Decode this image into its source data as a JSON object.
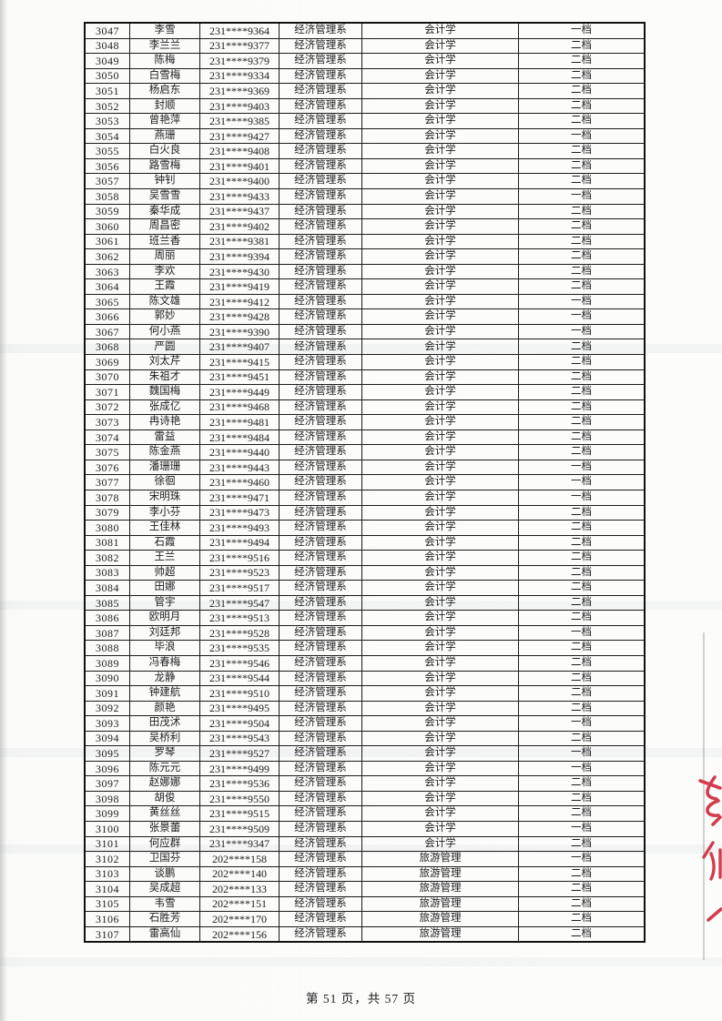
{
  "page": {
    "footer_text": "第 51 页，共 57 页",
    "colors": {
      "ink": "#1c1c1e",
      "paper": "#fbfbf9",
      "table_border": "#1a1a1a",
      "red_annotation": "#d23c4e"
    },
    "icons": {
      "red_annotation_marks": "handwritten-red-pen-strokes-clipped-at-page-edge"
    }
  },
  "table": {
    "rows": [
      [
        "3047",
        "李雪",
        "231****9364",
        "经济管理系",
        "会计学",
        "一档"
      ],
      [
        "3048",
        "李兰兰",
        "231****9377",
        "经济管理系",
        "会计学",
        "二档"
      ],
      [
        "3049",
        "陈梅",
        "231****9379",
        "经济管理系",
        "会计学",
        "二档"
      ],
      [
        "3050",
        "白雪梅",
        "231****9334",
        "经济管理系",
        "会计学",
        "二档"
      ],
      [
        "3051",
        "杨启东",
        "231****9369",
        "经济管理系",
        "会计学",
        "二档"
      ],
      [
        "3052",
        "封顺",
        "231****9403",
        "经济管理系",
        "会计学",
        "二档"
      ],
      [
        "3053",
        "曾艳萍",
        "231****9385",
        "经济管理系",
        "会计学",
        "二档"
      ],
      [
        "3054",
        "燕珊",
        "231****9427",
        "经济管理系",
        "会计学",
        "一档"
      ],
      [
        "3055",
        "白火良",
        "231****9408",
        "经济管理系",
        "会计学",
        "二档"
      ],
      [
        "3056",
        "路雪梅",
        "231****9401",
        "经济管理系",
        "会计学",
        "二档"
      ],
      [
        "3057",
        "钟钊",
        "231****9400",
        "经济管理系",
        "会计学",
        "二档"
      ],
      [
        "3058",
        "吴雪雪",
        "231****9433",
        "经济管理系",
        "会计学",
        "一档"
      ],
      [
        "3059",
        "秦华成",
        "231****9437",
        "经济管理系",
        "会计学",
        "二档"
      ],
      [
        "3060",
        "周昌密",
        "231****9402",
        "经济管理系",
        "会计学",
        "二档"
      ],
      [
        "3061",
        "班兰香",
        "231****9381",
        "经济管理系",
        "会计学",
        "二档"
      ],
      [
        "3062",
        "周丽",
        "231****9394",
        "经济管理系",
        "会计学",
        "二档"
      ],
      [
        "3063",
        "李欢",
        "231****9430",
        "经济管理系",
        "会计学",
        "二档"
      ],
      [
        "3064",
        "王霞",
        "231****9419",
        "经济管理系",
        "会计学",
        "二档"
      ],
      [
        "3065",
        "陈文雄",
        "231****9412",
        "经济管理系",
        "会计学",
        "一档"
      ],
      [
        "3066",
        "郭妙",
        "231****9428",
        "经济管理系",
        "会计学",
        "一档"
      ],
      [
        "3067",
        "何小燕",
        "231****9390",
        "经济管理系",
        "会计学",
        "一档"
      ],
      [
        "3068",
        "严圆",
        "231****9407",
        "经济管理系",
        "会计学",
        "二档"
      ],
      [
        "3069",
        "刘太芹",
        "231****9415",
        "经济管理系",
        "会计学",
        "二档"
      ],
      [
        "3070",
        "朱祖才",
        "231****9451",
        "经济管理系",
        "会计学",
        "二档"
      ],
      [
        "3071",
        "魏国梅",
        "231****9449",
        "经济管理系",
        "会计学",
        "二档"
      ],
      [
        "3072",
        "张成亿",
        "231****9468",
        "经济管理系",
        "会计学",
        "二档"
      ],
      [
        "3073",
        "冉诗艳",
        "231****9481",
        "经济管理系",
        "会计学",
        "二档"
      ],
      [
        "3074",
        "雷益",
        "231****9484",
        "经济管理系",
        "会计学",
        "二档"
      ],
      [
        "3075",
        "陈金燕",
        "231****9440",
        "经济管理系",
        "会计学",
        "二档"
      ],
      [
        "3076",
        "潘珊珊",
        "231****9443",
        "经济管理系",
        "会计学",
        "一档"
      ],
      [
        "3077",
        "徐徊",
        "231****9460",
        "经济管理系",
        "会计学",
        "一档"
      ],
      [
        "3078",
        "宋明珠",
        "231****9471",
        "经济管理系",
        "会计学",
        "一档"
      ],
      [
        "3079",
        "李小芬",
        "231****9473",
        "经济管理系",
        "会计学",
        "二档"
      ],
      [
        "3080",
        "王佳林",
        "231****9493",
        "经济管理系",
        "会计学",
        "二档"
      ],
      [
        "3081",
        "石霞",
        "231****9494",
        "经济管理系",
        "会计学",
        "二档"
      ],
      [
        "3082",
        "王兰",
        "231****9516",
        "经济管理系",
        "会计学",
        "二档"
      ],
      [
        "3083",
        "帅超",
        "231****9523",
        "经济管理系",
        "会计学",
        "二档"
      ],
      [
        "3084",
        "田娜",
        "231****9517",
        "经济管理系",
        "会计学",
        "二档"
      ],
      [
        "3085",
        "管宇",
        "231****9547",
        "经济管理系",
        "会计学",
        "二档"
      ],
      [
        "3086",
        "欧明月",
        "231****9513",
        "经济管理系",
        "会计学",
        "二档"
      ],
      [
        "3087",
        "刘廷邦",
        "231****9528",
        "经济管理系",
        "会计学",
        "一档"
      ],
      [
        "3088",
        "毕浪",
        "231****9535",
        "经济管理系",
        "会计学",
        "二档"
      ],
      [
        "3089",
        "冯春梅",
        "231****9546",
        "经济管理系",
        "会计学",
        "二档"
      ],
      [
        "3090",
        "龙静",
        "231****9544",
        "经济管理系",
        "会计学",
        "二档"
      ],
      [
        "3091",
        "钟建航",
        "231****9510",
        "经济管理系",
        "会计学",
        "二档"
      ],
      [
        "3092",
        "颜艳",
        "231****9495",
        "经济管理系",
        "会计学",
        "二档"
      ],
      [
        "3093",
        "田茂沭",
        "231****9504",
        "经济管理系",
        "会计学",
        "一档"
      ],
      [
        "3094",
        "吴桥利",
        "231****9543",
        "经济管理系",
        "会计学",
        "二档"
      ],
      [
        "3095",
        "罗琴",
        "231****9527",
        "经济管理系",
        "会计学",
        "一档"
      ],
      [
        "3096",
        "陈元元",
        "231****9499",
        "经济管理系",
        "会计学",
        "一档"
      ],
      [
        "3097",
        "赵娜娜",
        "231****9536",
        "经济管理系",
        "会计学",
        "二档"
      ],
      [
        "3098",
        "胡俊",
        "231****9550",
        "经济管理系",
        "会计学",
        "二档"
      ],
      [
        "3099",
        "黄丝丝",
        "231****9515",
        "经济管理系",
        "会计学",
        "二档"
      ],
      [
        "3100",
        "张景蕾",
        "231****9509",
        "经济管理系",
        "会计学",
        "一档"
      ],
      [
        "3101",
        "何应群",
        "231****9347",
        "经济管理系",
        "会计学",
        "二档"
      ],
      [
        "3102",
        "卫国芬",
        "202****158",
        "经济管理系",
        "旅游管理",
        "一档"
      ],
      [
        "3103",
        "谈鹏",
        "202****140",
        "经济管理系",
        "旅游管理",
        "二档"
      ],
      [
        "3104",
        "吴成超",
        "202****133",
        "经济管理系",
        "旅游管理",
        "二档"
      ],
      [
        "3105",
        "韦雪",
        "202****151",
        "经济管理系",
        "旅游管理",
        "二档"
      ],
      [
        "3106",
        "石胜芳",
        "202****170",
        "经济管理系",
        "旅游管理",
        "二档"
      ],
      [
        "3107",
        "雷高仙",
        "202****156",
        "经济管理系",
        "旅游管理",
        "二档"
      ]
    ]
  }
}
